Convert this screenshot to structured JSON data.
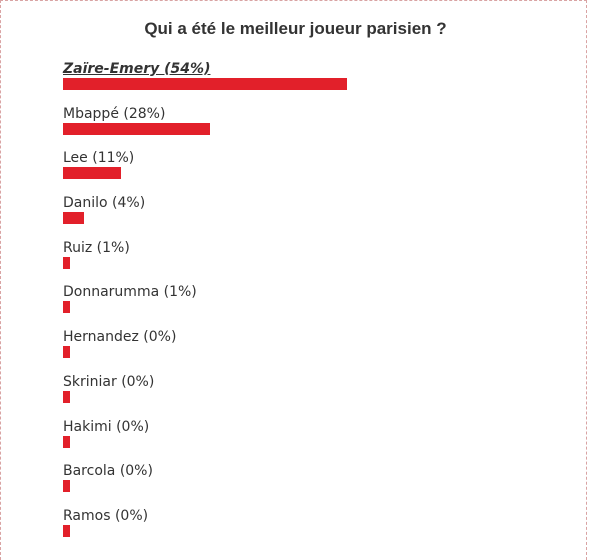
{
  "poll": {
    "question": "Qui a été le meilleur joueur parisien ?",
    "bar_color": "#e2202a",
    "options": [
      {
        "label": "Zaïre-Emery (54%)",
        "percent": 54,
        "leader": true
      },
      {
        "label": "Mbappé (28%)",
        "percent": 28,
        "leader": false
      },
      {
        "label": "Lee (11%)",
        "percent": 11,
        "leader": false
      },
      {
        "label": "Danilo (4%)",
        "percent": 4,
        "leader": false
      },
      {
        "label": "Ruiz (1%)",
        "percent": 1,
        "leader": false
      },
      {
        "label": "Donnarumma (1%)",
        "percent": 1,
        "leader": false
      },
      {
        "label": "Hernandez (0%)",
        "percent": 0,
        "leader": false
      },
      {
        "label": "Skriniar (0%)",
        "percent": 0,
        "leader": false
      },
      {
        "label": "Hakimi (0%)",
        "percent": 0,
        "leader": false
      },
      {
        "label": "Barcola (0%)",
        "percent": 0,
        "leader": false
      },
      {
        "label": "Ramos (0%)",
        "percent": 0,
        "leader": false
      }
    ]
  }
}
